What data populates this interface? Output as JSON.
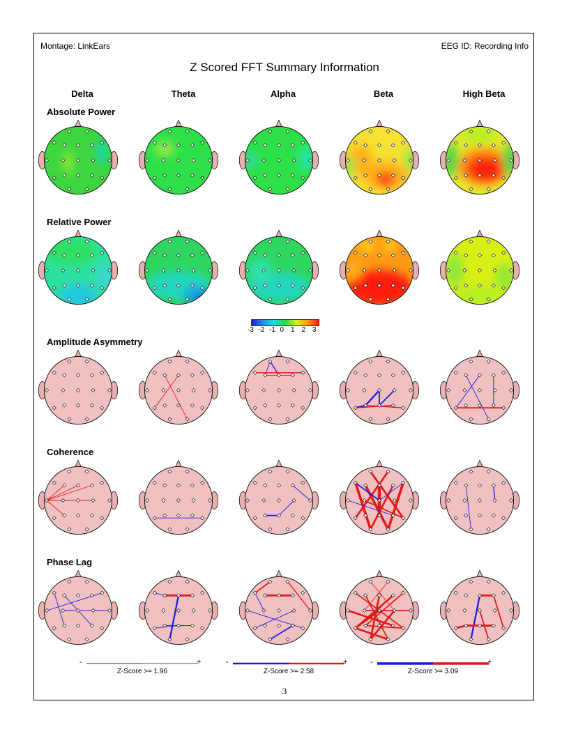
{
  "header": {
    "montage": "Montage:  LinkEars",
    "eeg_id": "EEG ID:  Recording Info"
  },
  "title": "Z Scored FFT Summary Information",
  "bands": [
    "Delta",
    "Theta",
    "Alpha",
    "Beta",
    "High Beta"
  ],
  "rows": [
    "Absolute Power",
    "Relative Power",
    "Amplitude Asymmetry",
    "Coherence",
    "Phase Lag"
  ],
  "colorbar": {
    "ticks": [
      "-3",
      "-2",
      "-1",
      "0",
      "1",
      "2",
      "3"
    ],
    "colors": [
      "#1f1fd6",
      "#1f8fe0",
      "#19e0e0",
      "#22d64a",
      "#d8f016",
      "#ff9a14",
      "#ff1a10"
    ]
  },
  "zscore_legends": [
    {
      "minus": "-",
      "plus": "+",
      "label": "Z-Score >= 1.96"
    },
    {
      "minus": "-",
      "plus": "+",
      "label": "Z-Score >= 2.58"
    },
    {
      "minus": "-",
      "plus": "+",
      "label": "Z-Score >= 3.09"
    }
  ],
  "page_number": "3",
  "colors": {
    "head_fill_connectivity": "#f1c1c1",
    "positive_line": "#e41a1a",
    "negative_line": "#1a1ae4"
  }
}
